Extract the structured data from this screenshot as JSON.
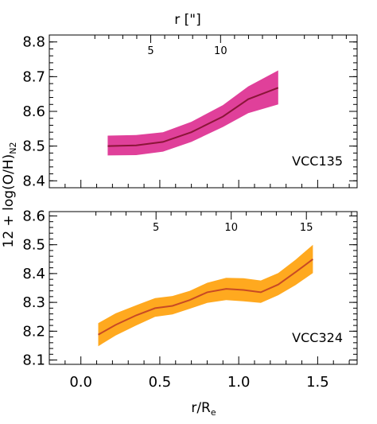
{
  "chart_data": [
    {
      "type": "area",
      "galaxy_label": "VCC135",
      "top_axis_title": "r [\"]",
      "top_ticks": [
        5,
        10
      ],
      "top_scale_per_re": 11.3,
      "ylim": [
        8.38,
        8.82
      ],
      "y_ticks": [
        8.4,
        8.5,
        8.6,
        8.7,
        8.8
      ],
      "xlim": [
        -0.2,
        1.75
      ],
      "color": "#e0409a",
      "line_color": "#8b1538",
      "x": [
        0.17,
        0.35,
        0.52,
        0.7,
        0.9,
        1.06,
        1.25
      ],
      "y": [
        8.5,
        8.502,
        8.512,
        8.54,
        8.585,
        8.635,
        8.668
      ],
      "y_low": [
        8.473,
        8.474,
        8.484,
        8.512,
        8.555,
        8.595,
        8.62
      ],
      "y_high": [
        8.53,
        8.532,
        8.54,
        8.57,
        8.618,
        8.672,
        8.718
      ]
    },
    {
      "type": "area",
      "galaxy_label": "VCC324",
      "top_ticks": [
        5,
        10,
        15
      ],
      "top_scale_per_re": 10.5,
      "ylim": [
        8.085,
        8.615
      ],
      "y_ticks": [
        8.1,
        8.2,
        8.3,
        8.4,
        8.5,
        8.6
      ],
      "xlim": [
        -0.2,
        1.75
      ],
      "color": "#ffa91f",
      "line_color": "#c84a24",
      "x": [
        0.11,
        0.22,
        0.35,
        0.47,
        0.58,
        0.69,
        0.8,
        0.92,
        1.03,
        1.14,
        1.25,
        1.36,
        1.47
      ],
      "y": [
        8.188,
        8.222,
        8.255,
        8.28,
        8.288,
        8.308,
        8.335,
        8.347,
        8.343,
        8.335,
        8.362,
        8.405,
        8.45
      ],
      "y_low": [
        8.148,
        8.185,
        8.22,
        8.25,
        8.258,
        8.278,
        8.298,
        8.308,
        8.304,
        8.298,
        8.325,
        8.36,
        8.402
      ],
      "y_high": [
        8.228,
        8.262,
        8.29,
        8.315,
        8.322,
        8.34,
        8.368,
        8.385,
        8.384,
        8.376,
        8.402,
        8.448,
        8.5
      ]
    }
  ],
  "shared": {
    "x_ticks": [
      "0.0",
      "0.5",
      "1.0",
      "1.5"
    ],
    "x_tick_values": [
      0.0,
      0.5,
      1.0,
      1.5
    ],
    "xlabel": "r/R",
    "xlabel_sub": "e",
    "ylabel": "12 + log(O/H)",
    "ylabel_sub": "N2"
  }
}
